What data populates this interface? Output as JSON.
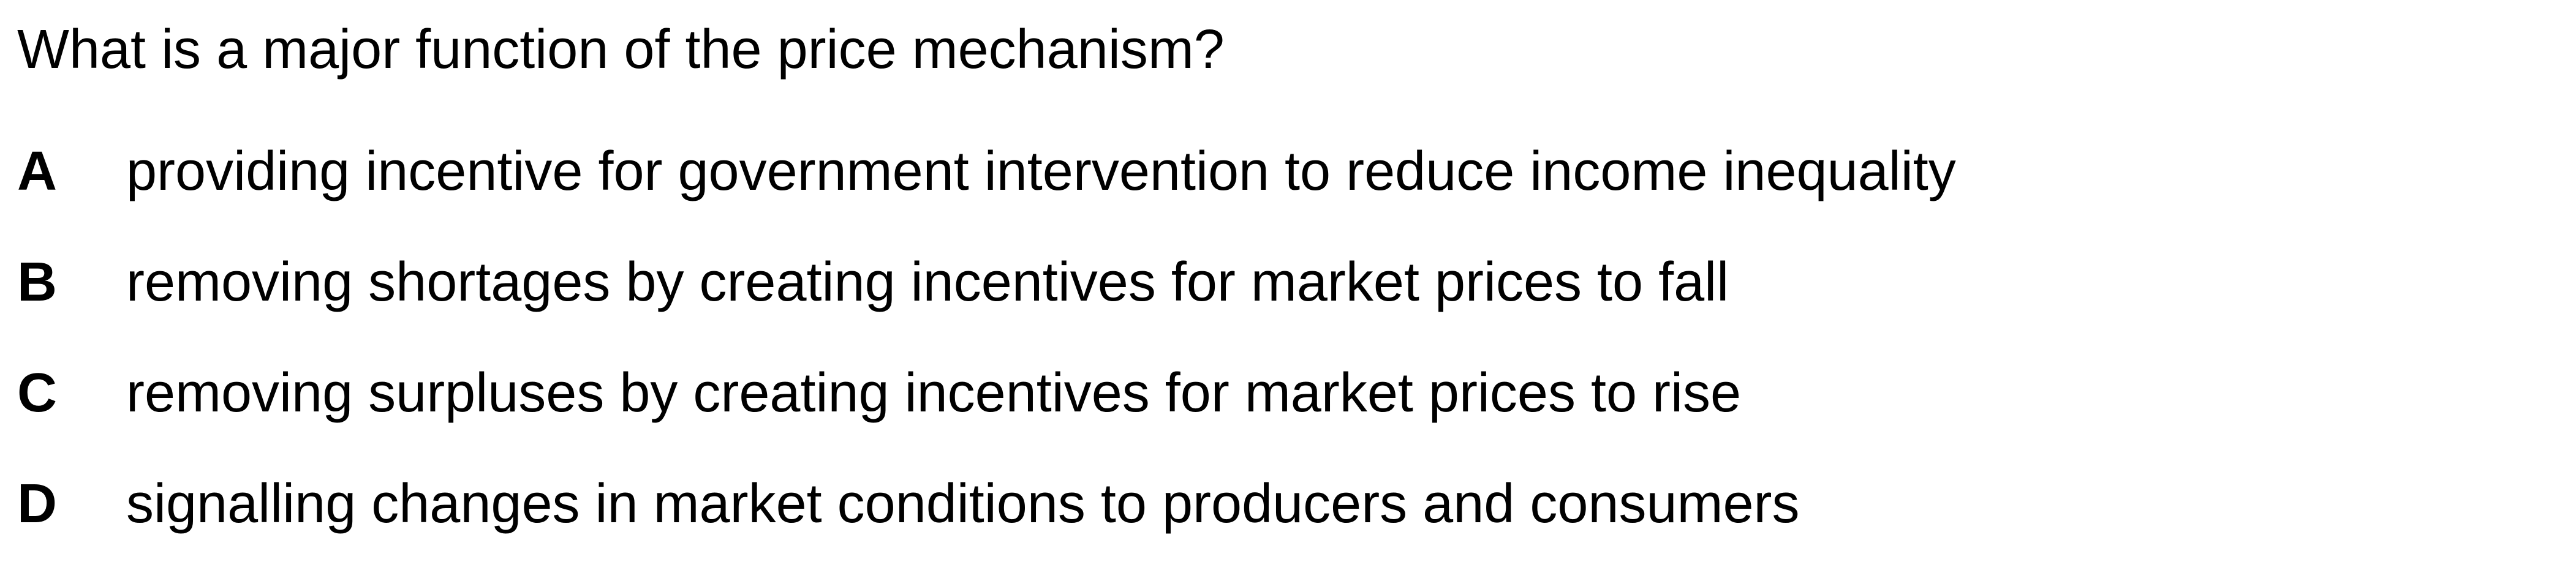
{
  "question": {
    "text": "What is a major function of the price mechanism?"
  },
  "options": [
    {
      "letter": "A",
      "text": "providing incentive for government intervention to reduce income inequality"
    },
    {
      "letter": "B",
      "text": "removing shortages by creating incentives for market prices to fall"
    },
    {
      "letter": "C",
      "text": "removing surpluses by creating incentives for market prices to rise"
    },
    {
      "letter": "D",
      "text": "signalling changes in market conditions to producers and consumers"
    }
  ]
}
